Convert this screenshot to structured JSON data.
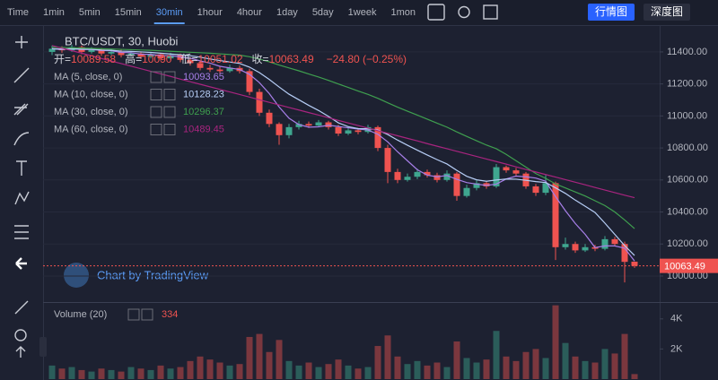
{
  "toolbar": {
    "intervals": [
      "Time",
      "1min",
      "5min",
      "15min",
      "30min",
      "1hour",
      "4hour",
      "1day",
      "5day",
      "1week",
      "1mon"
    ],
    "active": 4,
    "views": [
      "行情图",
      "深度图"
    ]
  },
  "chart_data": {
    "type": "candlestick",
    "title": "BTC/USDT, 30, Huobi",
    "ohlc_labels": [
      "开=",
      "高=",
      "低=",
      "收="
    ],
    "change_label": "−24.80 (−0.25%)",
    "watermark": "Chart by TradingView",
    "up_color": "#3fa68f",
    "down_color": "#ef5350",
    "open": [
      11400,
      11420,
      11410,
      11430,
      11400,
      11415,
      11390,
      11400,
      11380,
      11390,
      11370,
      11385,
      11360,
      11380,
      11350,
      11330,
      11300,
      11290,
      11280,
      11300,
      11280,
      11150,
      11020,
      10950,
      10880,
      10930,
      10950,
      10940,
      10960,
      10930,
      10890,
      10910,
      10900,
      10930,
      10800,
      10650,
      10600,
      10620,
      10650,
      10630,
      10600,
      10640,
      10500,
      10550,
      10580,
      10560,
      10680,
      10660,
      10640,
      10560,
      10520,
      10580,
      10180,
      10200,
      10160,
      10180,
      10170,
      10230,
      10200,
      10089.58
    ],
    "high": [
      11440,
      11435,
      11445,
      11440,
      11430,
      11425,
      11420,
      11415,
      11405,
      11400,
      11400,
      11395,
      11395,
      11390,
      11365,
      11345,
      11320,
      11310,
      11320,
      11315,
      11295,
      11170,
      11040,
      10960,
      10950,
      10970,
      10965,
      10975,
      10970,
      10945,
      10930,
      10925,
      10945,
      10940,
      10820,
      10670,
      10640,
      10670,
      10665,
      10645,
      10660,
      10650,
      10570,
      10600,
      10595,
      10700,
      10690,
      10675,
      10650,
      10575,
      10630,
      10590,
      10240,
      10215,
      10200,
      10195,
      10250,
      10245,
      10215,
      10090.0
    ],
    "low": [
      11380,
      11395,
      11400,
      11385,
      11390,
      11375,
      11380,
      11365,
      11370,
      11355,
      11360,
      11345,
      11350,
      11335,
      11315,
      11285,
      11275,
      11265,
      11270,
      11265,
      11130,
      11000,
      10930,
      10820,
      10860,
      10915,
      10925,
      10930,
      10915,
      10875,
      10880,
      10885,
      10890,
      10780,
      10580,
      10580,
      10590,
      10605,
      10615,
      10585,
      10590,
      10470,
      10490,
      10535,
      10545,
      10550,
      10645,
      10625,
      10545,
      10500,
      10505,
      10100,
      10165,
      10145,
      10150,
      10155,
      10160,
      10185,
      9960,
      10051.02
    ],
    "close": [
      11420,
      11410,
      11430,
      11400,
      11415,
      11390,
      11400,
      11380,
      11390,
      11370,
      11385,
      11360,
      11380,
      11350,
      11330,
      11300,
      11290,
      11280,
      11300,
      11280,
      11150,
      11020,
      10950,
      10880,
      10930,
      10950,
      10940,
      10960,
      10930,
      10890,
      10910,
      10900,
      10930,
      10800,
      10650,
      10600,
      10620,
      10650,
      10630,
      10600,
      10640,
      10500,
      10550,
      10580,
      10560,
      10680,
      10660,
      10640,
      10560,
      10520,
      10580,
      10180,
      10200,
      10160,
      10180,
      10170,
      10230,
      10200,
      10088.29,
      10063.49
    ],
    "close_label": "10063.49",
    "series": [
      {
        "name": "MA (5, close, 0)",
        "color": "#a77fe8",
        "values": [
          11420,
          11415,
          11420,
          11415,
          11415,
          11409,
          11407,
          11397,
          11395,
          11386,
          11385,
          11377,
          11377,
          11369,
          11361,
          11344,
          11330,
          11310,
          11300,
          11290,
          11260,
          11208,
          11140,
          11056,
          10986,
          10946,
          10930,
          10932,
          10942,
          10934,
          10926,
          10918,
          10912,
          10886,
          10838,
          10776,
          10720,
          10664,
          10630,
          10620,
          10628,
          10604,
          10584,
          10574,
          10566,
          10574,
          10606,
          10624,
          10620,
          10612,
          10592,
          10496,
          10408,
          10328,
          10260,
          10178,
          10188,
          10188,
          10174,
          10093.65
        ]
      },
      {
        "name": "MA (10, close, 0)",
        "color": "#b6cdf5",
        "values": [
          11420,
          11418,
          11420,
          11418,
          11417,
          11412,
          11410,
          11405,
          11403,
          11400,
          11397,
          11392,
          11387,
          11382,
          11376,
          11367,
          11356,
          11346,
          11337,
          11328,
          11305,
          11271,
          11228,
          11181,
          11136,
          11101,
          11066,
          11034,
          10997,
          10957,
          10933,
          10921,
          10920,
          10912,
          10884,
          10849,
          10817,
          10786,
          10756,
          10727,
          10700,
          10660,
          10623,
          10601,
          10592,
          10600,
          10606,
          10605,
          10598,
          10590,
          10584,
          10551,
          10516,
          10474,
          10436,
          10397,
          10330,
          10260,
          10190,
          10128.23
        ]
      },
      {
        "name": "MA (30, close, 0)",
        "color": "#3f9f4f",
        "values": [
          11430,
          11428,
          11426,
          11424,
          11422,
          11420,
          11418,
          11416,
          11414,
          11412,
          11410,
          11407,
          11404,
          11401,
          11398,
          11395,
          11392,
          11388,
          11384,
          11380,
          11370,
          11355,
          11338,
          11318,
          11300,
          11282,
          11262,
          11243,
          11222,
          11200,
          11178,
          11156,
          11135,
          11110,
          11082,
          11055,
          11030,
          11005,
          10980,
          10955,
          10930,
          10900,
          10872,
          10845,
          10818,
          10795,
          10760,
          10720,
          10680,
          10640,
          10610,
          10575,
          10550,
          10525,
          10500,
          10470,
          10440,
          10400,
          10350,
          10296.37
        ]
      },
      {
        "name": "MA (60, close, 0)",
        "color": "#a8247f",
        "values": [
          11440,
          11424,
          11408,
          11392,
          11376,
          11359,
          11343,
          11327,
          11311,
          11295,
          11279,
          11263,
          11247,
          11230,
          11214,
          11198,
          11182,
          11166,
          11150,
          11134,
          11118,
          11101,
          11085,
          11069,
          11053,
          11037,
          11021,
          11005,
          10989,
          10972,
          10956,
          10940,
          10924,
          10908,
          10892,
          10876,
          10860,
          10844,
          10827,
          10811,
          10795,
          10779,
          10763,
          10747,
          10731,
          10715,
          10699,
          10682,
          10666,
          10650,
          10634,
          10618,
          10602,
          10586,
          10570,
          10553,
          10537,
          10521,
          10505,
          10489.45
        ]
      }
    ],
    "ylim": [
      9843,
      11562
    ],
    "yticks": [
      {
        "value": 10000,
        "label": "10000.00"
      },
      {
        "value": 10200,
        "label": "10200.00"
      },
      {
        "value": 10400,
        "label": "10400.00"
      },
      {
        "value": 10600,
        "label": "10600.00"
      },
      {
        "value": 10800,
        "label": "10800.00"
      },
      {
        "value": 11000,
        "label": "11000.00"
      },
      {
        "value": 11200,
        "label": "11200.00"
      },
      {
        "value": 11400,
        "label": "11400.00"
      }
    ],
    "volume": {
      "name": "Volume (20)",
      "values": [
        900,
        700,
        800,
        600,
        500,
        700,
        600,
        500,
        800,
        700,
        600,
        900,
        700,
        800,
        1200,
        1500,
        1300,
        1100,
        900,
        1000,
        2800,
        3000,
        1800,
        2600,
        1200,
        900,
        1100,
        800,
        1000,
        1300,
        900,
        700,
        800,
        2200,
        2900,
        1500,
        1000,
        1200,
        900,
        1100,
        800,
        2500,
        1400,
        1100,
        1300,
        3200,
        1500,
        1200,
        1800,
        2000,
        1400,
        4900,
        2400,
        1500,
        1200,
        1100,
        2000,
        1700,
        3000,
        334
      ],
      "ylim": [
        0,
        5000
      ],
      "yticks": [
        {
          "value": 2000,
          "label": "2K"
        },
        {
          "value": 4000,
          "label": "4K"
        }
      ]
    }
  }
}
